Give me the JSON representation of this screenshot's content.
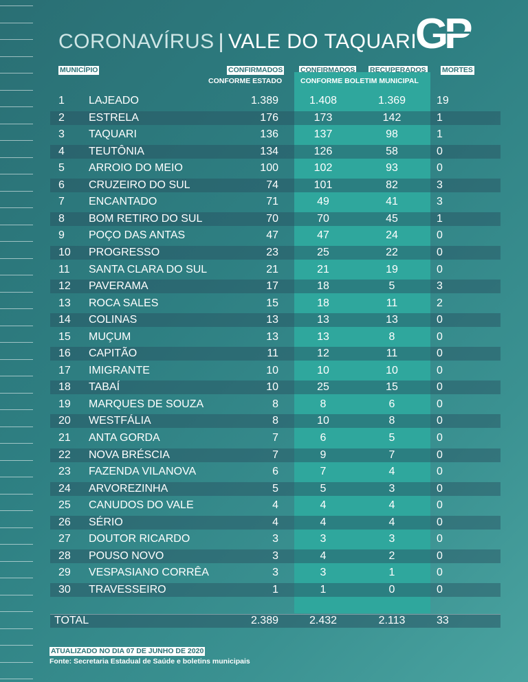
{
  "title": {
    "prefix": "CORONAVÍRUS",
    "separator": "|",
    "main": "VALE DO TAQUARI"
  },
  "logo": {
    "text": "GP"
  },
  "headers": {
    "municipio": "MUNICÍPIO",
    "confirmados_estado": "CONFIRMADOS",
    "conforme_estado": "CONFORME ESTADO",
    "confirmados_boletim": "CONFIRMADOS",
    "recuperados": "RECUPERADOS",
    "conforme_boletim": "CONFORME BOLETIM MUNICIPAL",
    "mortes": "MORTES"
  },
  "rows": [
    [
      "1",
      "LAJEADO",
      "1.389",
      "1.408",
      "1.369",
      "19"
    ],
    [
      "2",
      "ESTRELA",
      "176",
      "173",
      "142",
      "1"
    ],
    [
      "3",
      "TAQUARI",
      "136",
      "137",
      "98",
      "1"
    ],
    [
      "4",
      "TEUTÔNIA",
      "134",
      "126",
      "58",
      "0"
    ],
    [
      "5",
      "ARROIO DO MEIO",
      "100",
      "102",
      "93",
      "0"
    ],
    [
      "6",
      "CRUZEIRO DO SUL",
      "74",
      "101",
      "82",
      "3"
    ],
    [
      "7",
      "ENCANTADO",
      "71",
      "49",
      "41",
      "3"
    ],
    [
      "8",
      "BOM RETIRO DO SUL",
      "70",
      "70",
      "45",
      "1"
    ],
    [
      "9",
      "POÇO DAS ANTAS",
      "47",
      "47",
      "24",
      "0"
    ],
    [
      "10",
      "PROGRESSO",
      "23",
      "25",
      "22",
      "0"
    ],
    [
      "11",
      "SANTA CLARA DO SUL",
      "21",
      "21",
      "19",
      "0"
    ],
    [
      "12",
      "PAVERAMA",
      "17",
      "18",
      "5",
      "3"
    ],
    [
      "13",
      "ROCA SALES",
      "15",
      "18",
      "11",
      "2"
    ],
    [
      "14",
      "COLINAS",
      "13",
      "13",
      "13",
      "0"
    ],
    [
      "15",
      "MUÇUM",
      "13",
      "13",
      "8",
      "0"
    ],
    [
      "16",
      "CAPITÃO",
      "11",
      "12",
      "11",
      "0"
    ],
    [
      "17",
      "IMIGRANTE",
      "10",
      "10",
      "10",
      "0"
    ],
    [
      "18",
      "TABAÍ",
      "10",
      "25",
      "15",
      "0"
    ],
    [
      "19",
      "MARQUES DE SOUZA",
      "8",
      "8",
      "6",
      "0"
    ],
    [
      "20",
      "WESTFÁLIA",
      "8",
      "10",
      "8",
      "0"
    ],
    [
      "21",
      "ANTA GORDA",
      "7",
      "6",
      "5",
      "0"
    ],
    [
      "22",
      "NOVA BRÉSCIA",
      "7",
      "9",
      "7",
      "0"
    ],
    [
      "23",
      "FAZENDA VILANOVA",
      "6",
      "7",
      "4",
      "0"
    ],
    [
      "24",
      "ARVOREZINHA",
      "5",
      "5",
      "3",
      "0"
    ],
    [
      "25",
      "CANUDOS DO VALE",
      "4",
      "4",
      "4",
      "0"
    ],
    [
      "26",
      "SÉRIO",
      "4",
      "4",
      "4",
      "0"
    ],
    [
      "27",
      "DOUTOR RICARDO",
      "3",
      "3",
      "3",
      "0"
    ],
    [
      "28",
      "POUSO NOVO",
      "3",
      "4",
      "2",
      "0"
    ],
    [
      "29",
      "VESPASIANO CORRÊA",
      "3",
      "3",
      "1",
      "0"
    ],
    [
      "30",
      "TRAVESSEIRO",
      "1",
      "1",
      "0",
      "0"
    ]
  ],
  "total": {
    "label": "TOTAL",
    "estado": "2.389",
    "boletim": "2.432",
    "recuperados": "2.113",
    "mortes": "33"
  },
  "footer": {
    "updated": "ATUALIZADO NO DIA 07 DE JUNHO DE 2020",
    "source": "Fonte: Secretaria Estadual de Saúde e boletins municipais"
  },
  "colors": {
    "background": "#2e7f82",
    "accent_band": "#2fa79d",
    "dark_row": "#2a5663"
  }
}
